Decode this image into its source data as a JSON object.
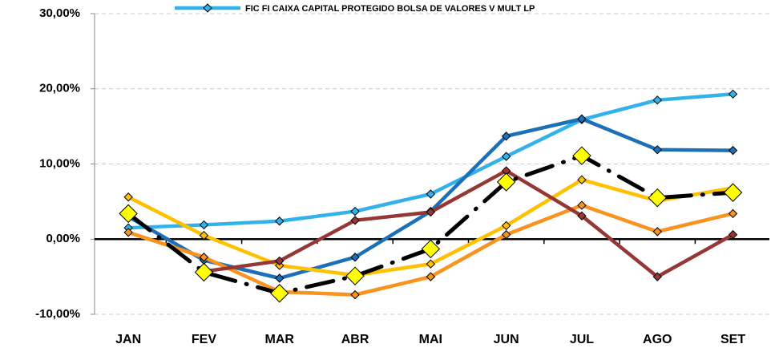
{
  "chart_data": {
    "type": "line",
    "categories": [
      "JAN",
      "FEV",
      "MAR",
      "ABR",
      "MAI",
      "JUN",
      "JUL",
      "AGO",
      "SET"
    ],
    "series": [
      {
        "name": "FIC FI CAIXA CAPITAL PROTEGIDO BOLSA DE VALORES V MULT LP",
        "color": "#33b2ea",
        "values": [
          1.5,
          1.9,
          2.4,
          3.7,
          6.0,
          11.0,
          15.9,
          18.5,
          19.3
        ]
      },
      {
        "color": "#1c70b8",
        "values": [
          3.0,
          -2.8,
          -5.2,
          -2.4,
          3.7,
          13.7,
          16.0,
          11.9,
          11.8
        ]
      },
      {
        "color": "#ffc000",
        "values": [
          5.6,
          0.5,
          -3.5,
          -4.8,
          -3.3,
          1.8,
          7.9,
          5.1,
          6.8
        ]
      },
      {
        "color": "#f7931e",
        "values": [
          0.9,
          -2.4,
          -7.0,
          -7.4,
          -5.0,
          0.6,
          4.5,
          1.0,
          3.4
        ]
      },
      {
        "color": "#953735",
        "values": [
          null,
          -4.3,
          -2.9,
          2.5,
          3.6,
          9.1,
          3.1,
          -5.0,
          0.6
        ]
      },
      {
        "color": "#000000",
        "marker_color": "#ffff00",
        "line_style": "dash-dot",
        "values": [
          3.4,
          -4.4,
          -7.2,
          -4.9,
          -1.3,
          7.6,
          11.1,
          5.5,
          6.2
        ]
      }
    ],
    "ylim": [
      -10,
      30
    ],
    "yticks": [
      {
        "value": -10,
        "label": "-10,00%"
      },
      {
        "value": 0,
        "label": "0,00%"
      },
      {
        "value": 10,
        "label": "10,00%"
      },
      {
        "value": 20,
        "label": "20,00%"
      },
      {
        "value": 30,
        "label": "30,00%"
      }
    ],
    "grid": true
  }
}
